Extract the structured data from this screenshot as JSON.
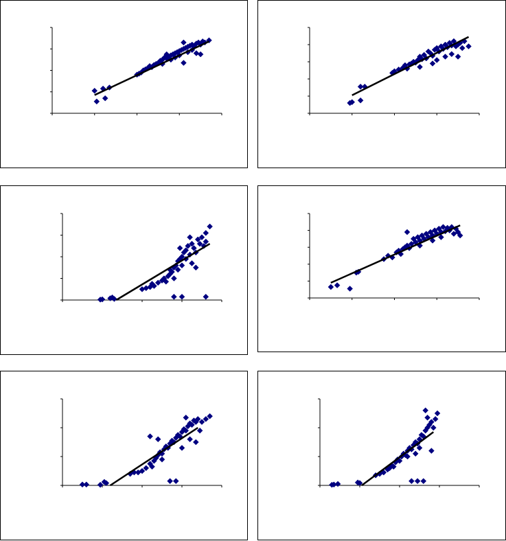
{
  "chart_data": [
    {
      "type": "scatter",
      "marker_color": "#000080",
      "trend_color": "#000000",
      "xlim": [
        0,
        4
      ],
      "ylim": [
        0,
        4
      ],
      "xticks": [
        0,
        1,
        2,
        3,
        4
      ],
      "yticks": [
        0,
        1,
        2,
        3,
        4
      ],
      "grid": false,
      "points": [
        [
          1.0,
          1.05
        ],
        [
          1.05,
          0.55
        ],
        [
          1.25,
          0.7
        ],
        [
          1.2,
          1.15
        ],
        [
          1.35,
          1.2
        ],
        [
          2.0,
          1.8
        ],
        [
          2.05,
          1.85
        ],
        [
          2.1,
          1.9
        ],
        [
          2.15,
          2.0
        ],
        [
          2.2,
          2.05
        ],
        [
          2.25,
          2.1
        ],
        [
          2.3,
          2.2
        ],
        [
          2.35,
          2.15
        ],
        [
          2.4,
          2.25
        ],
        [
          2.45,
          2.3
        ],
        [
          2.5,
          2.35
        ],
        [
          2.55,
          2.45
        ],
        [
          2.6,
          2.5
        ],
        [
          2.6,
          2.3
        ],
        [
          2.65,
          2.6
        ],
        [
          2.7,
          2.55
        ],
        [
          2.75,
          2.65
        ],
        [
          2.8,
          2.7
        ],
        [
          2.8,
          2.5
        ],
        [
          2.85,
          2.75
        ],
        [
          2.9,
          2.8
        ],
        [
          2.95,
          2.85
        ],
        [
          3.0,
          2.9
        ],
        [
          3.0,
          2.7
        ],
        [
          3.05,
          2.95
        ],
        [
          3.1,
          3.0
        ],
        [
          3.1,
          3.3
        ],
        [
          3.15,
          3.05
        ],
        [
          3.2,
          3.1
        ],
        [
          3.2,
          2.85
        ],
        [
          3.25,
          3.15
        ],
        [
          3.3,
          3.2
        ],
        [
          3.35,
          3.1
        ],
        [
          3.4,
          3.25
        ],
        [
          3.45,
          3.3
        ],
        [
          3.5,
          3.2
        ],
        [
          3.55,
          3.35
        ],
        [
          3.6,
          3.3
        ],
        [
          3.7,
          3.4
        ],
        [
          3.5,
          2.75
        ],
        [
          3.1,
          2.35
        ],
        [
          2.9,
          2.6
        ],
        [
          3.3,
          2.95
        ],
        [
          3.4,
          2.8
        ],
        [
          2.7,
          2.75
        ]
      ],
      "trend": [
        [
          1.0,
          0.85
        ],
        [
          3.7,
          3.35
        ]
      ]
    },
    {
      "type": "scatter",
      "marker_color": "#000080",
      "trend_color": "#000000",
      "xlim": [
        0,
        4
      ],
      "ylim": [
        0,
        5
      ],
      "xticks": [
        0,
        1,
        2,
        3,
        4
      ],
      "yticks": [
        0,
        1,
        2,
        3,
        4,
        5
      ],
      "grid": false,
      "points": [
        [
          0.95,
          0.6
        ],
        [
          1.0,
          0.65
        ],
        [
          1.2,
          0.75
        ],
        [
          1.2,
          1.55
        ],
        [
          1.3,
          1.55
        ],
        [
          1.95,
          2.35
        ],
        [
          2.0,
          2.45
        ],
        [
          2.1,
          2.55
        ],
        [
          2.2,
          2.65
        ],
        [
          2.25,
          2.8
        ],
        [
          2.3,
          2.6
        ],
        [
          2.35,
          2.85
        ],
        [
          2.4,
          2.9
        ],
        [
          2.45,
          3.0
        ],
        [
          2.5,
          2.95
        ],
        [
          2.55,
          3.1
        ],
        [
          2.6,
          3.3
        ],
        [
          2.65,
          3.15
        ],
        [
          2.7,
          3.4
        ],
        [
          2.75,
          3.2
        ],
        [
          2.8,
          3.6
        ],
        [
          2.85,
          3.5
        ],
        [
          2.9,
          3.35
        ],
        [
          2.95,
          3.7
        ],
        [
          3.0,
          3.8
        ],
        [
          3.05,
          3.6
        ],
        [
          3.1,
          3.9
        ],
        [
          3.15,
          3.75
        ],
        [
          3.2,
          4.0
        ],
        [
          3.25,
          3.85
        ],
        [
          3.3,
          4.1
        ],
        [
          3.35,
          3.95
        ],
        [
          3.4,
          4.2
        ],
        [
          3.45,
          3.9
        ],
        [
          3.5,
          4.0
        ],
        [
          3.55,
          4.1
        ],
        [
          3.6,
          3.8
        ],
        [
          3.65,
          4.2
        ],
        [
          3.5,
          3.3
        ],
        [
          3.75,
          3.9
        ],
        [
          2.9,
          2.9
        ],
        [
          3.0,
          3.1
        ],
        [
          3.2,
          3.3
        ],
        [
          2.6,
          2.7
        ],
        [
          3.35,
          3.45
        ]
      ],
      "trend": [
        [
          1.0,
          1.05
        ],
        [
          3.75,
          4.45
        ]
      ]
    },
    {
      "type": "scatter",
      "marker_color": "#000080",
      "trend_color": "#000000",
      "xlim": [
        0,
        4
      ],
      "ylim": [
        0,
        4
      ],
      "xticks": [
        0,
        1,
        2,
        3,
        4
      ],
      "yticks": [
        0,
        1,
        2,
        3,
        4
      ],
      "grid": false,
      "points": [
        [
          0.95,
          0.02
        ],
        [
          1.0,
          0.03
        ],
        [
          1.2,
          0.08
        ],
        [
          1.3,
          0.05
        ],
        [
          1.25,
          0.12
        ],
        [
          2.0,
          0.5
        ],
        [
          2.1,
          0.55
        ],
        [
          2.2,
          0.6
        ],
        [
          2.25,
          0.75
        ],
        [
          2.3,
          0.65
        ],
        [
          2.4,
          0.8
        ],
        [
          2.5,
          0.9
        ],
        [
          2.55,
          1.0
        ],
        [
          2.6,
          0.85
        ],
        [
          2.65,
          1.1
        ],
        [
          2.7,
          1.2
        ],
        [
          2.75,
          1.3
        ],
        [
          2.8,
          1.0
        ],
        [
          2.8,
          1.5
        ],
        [
          2.85,
          1.6
        ],
        [
          2.9,
          1.4
        ],
        [
          2.9,
          1.8
        ],
        [
          2.95,
          1.9
        ],
        [
          3.0,
          2.0
        ],
        [
          3.0,
          1.6
        ],
        [
          3.05,
          2.2
        ],
        [
          3.1,
          2.3
        ],
        [
          3.1,
          1.9
        ],
        [
          3.15,
          2.5
        ],
        [
          3.2,
          2.1
        ],
        [
          3.25,
          2.6
        ],
        [
          3.3,
          2.4
        ],
        [
          3.35,
          2.2
        ],
        [
          3.4,
          2.8
        ],
        [
          3.45,
          2.6
        ],
        [
          3.5,
          2.9
        ],
        [
          3.55,
          2.5
        ],
        [
          3.6,
          3.1
        ],
        [
          3.7,
          3.4
        ],
        [
          3.6,
          2.7
        ],
        [
          2.8,
          0.15
        ],
        [
          3.0,
          0.15
        ],
        [
          3.6,
          0.15
        ],
        [
          3.35,
          1.5
        ],
        [
          2.7,
          1.4
        ],
        [
          2.95,
          2.4
        ],
        [
          3.2,
          2.9
        ],
        [
          3.25,
          1.7
        ]
      ],
      "trend": [
        [
          1.35,
          0.0
        ],
        [
          3.7,
          2.6
        ]
      ]
    },
    {
      "type": "scatter",
      "marker_color": "#000080",
      "trend_color": "#000000",
      "xlim": [
        0,
        4
      ],
      "ylim": [
        0,
        5
      ],
      "xticks": [
        0,
        1,
        2,
        3,
        4
      ],
      "yticks": [
        0,
        1,
        2,
        3,
        4,
        5
      ],
      "grid": false,
      "points": [
        [
          0.5,
          0.65
        ],
        [
          0.65,
          0.75
        ],
        [
          0.95,
          0.55
        ],
        [
          1.1,
          1.5
        ],
        [
          1.15,
          1.55
        ],
        [
          1.75,
          2.3
        ],
        [
          1.85,
          2.5
        ],
        [
          1.95,
          2.4
        ],
        [
          2.05,
          2.7
        ],
        [
          2.1,
          2.8
        ],
        [
          2.15,
          2.6
        ],
        [
          2.2,
          2.9
        ],
        [
          2.25,
          3.0
        ],
        [
          2.3,
          3.1
        ],
        [
          2.35,
          2.95
        ],
        [
          2.4,
          3.2
        ],
        [
          2.45,
          3.5
        ],
        [
          2.5,
          3.3
        ],
        [
          2.55,
          3.6
        ],
        [
          2.6,
          3.4
        ],
        [
          2.65,
          3.7
        ],
        [
          2.7,
          3.5
        ],
        [
          2.75,
          3.8
        ],
        [
          2.8,
          3.6
        ],
        [
          2.85,
          3.9
        ],
        [
          2.9,
          3.7
        ],
        [
          2.95,
          4.0
        ],
        [
          3.0,
          3.8
        ],
        [
          3.05,
          4.1
        ],
        [
          3.1,
          3.9
        ],
        [
          3.15,
          4.2
        ],
        [
          3.2,
          3.95
        ],
        [
          3.25,
          4.15
        ],
        [
          3.3,
          4.0
        ],
        [
          3.35,
          4.2
        ],
        [
          3.4,
          3.8
        ],
        [
          3.45,
          4.1
        ],
        [
          3.5,
          3.9
        ],
        [
          3.55,
          3.7
        ],
        [
          2.3,
          3.9
        ],
        [
          2.6,
          3.1
        ],
        [
          2.9,
          3.4
        ],
        [
          3.1,
          3.6
        ]
      ],
      "trend": [
        [
          0.5,
          0.9
        ],
        [
          3.55,
          4.3
        ]
      ]
    },
    {
      "type": "scatter",
      "marker_color": "#000080",
      "trend_color": "#000000",
      "xlim": [
        0,
        4
      ],
      "ylim": [
        0,
        3
      ],
      "xticks": [
        0,
        1,
        2,
        3,
        4
      ],
      "yticks": [
        0,
        1,
        2,
        3
      ],
      "grid": false,
      "points": [
        [
          0.5,
          0.03
        ],
        [
          0.6,
          0.03
        ],
        [
          0.95,
          0.02
        ],
        [
          1.05,
          0.12
        ],
        [
          1.1,
          0.08
        ],
        [
          1.7,
          0.4
        ],
        [
          1.8,
          0.45
        ],
        [
          1.9,
          0.45
        ],
        [
          2.0,
          0.5
        ],
        [
          2.1,
          0.6
        ],
        [
          2.2,
          0.75
        ],
        [
          2.25,
          0.65
        ],
        [
          2.3,
          0.85
        ],
        [
          2.35,
          0.95
        ],
        [
          2.4,
          1.05
        ],
        [
          2.45,
          1.15
        ],
        [
          2.5,
          1.1
        ],
        [
          2.55,
          1.25
        ],
        [
          2.6,
          1.35
        ],
        [
          2.65,
          1.3
        ],
        [
          2.7,
          1.45
        ],
        [
          2.75,
          1.55
        ],
        [
          2.8,
          1.5
        ],
        [
          2.85,
          1.65
        ],
        [
          2.9,
          1.75
        ],
        [
          2.95,
          1.7
        ],
        [
          3.0,
          1.85
        ],
        [
          3.05,
          1.95
        ],
        [
          3.1,
          1.9
        ],
        [
          3.15,
          2.05
        ],
        [
          3.2,
          2.15
        ],
        [
          3.25,
          2.1
        ],
        [
          3.3,
          2.25
        ],
        [
          3.35,
          2.2
        ],
        [
          3.4,
          2.3
        ],
        [
          3.45,
          1.9
        ],
        [
          3.5,
          2.2
        ],
        [
          3.6,
          2.3
        ],
        [
          3.7,
          2.4
        ],
        [
          2.2,
          1.7
        ],
        [
          2.7,
          0.15
        ],
        [
          2.85,
          0.15
        ],
        [
          2.5,
          0.9
        ],
        [
          3.2,
          1.6
        ],
        [
          3.35,
          1.5
        ],
        [
          3.0,
          1.3
        ],
        [
          2.4,
          1.6
        ],
        [
          3.1,
          2.35
        ]
      ],
      "trend": [
        [
          1.2,
          0.0
        ],
        [
          3.4,
          2.0
        ]
      ]
    },
    {
      "type": "scatter",
      "marker_color": "#000080",
      "trend_color": "#000000",
      "xlim": [
        0,
        4
      ],
      "ylim": [
        0,
        3
      ],
      "xticks": [
        0,
        1,
        2,
        3,
        4
      ],
      "yticks": [
        0,
        1,
        2,
        3
      ],
      "grid": false,
      "points": [
        [
          0.3,
          0.02
        ],
        [
          0.35,
          0.03
        ],
        [
          0.45,
          0.05
        ],
        [
          0.95,
          0.1
        ],
        [
          1.0,
          0.08
        ],
        [
          1.4,
          0.35
        ],
        [
          1.5,
          0.4
        ],
        [
          1.6,
          0.45
        ],
        [
          1.7,
          0.55
        ],
        [
          1.75,
          0.6
        ],
        [
          1.8,
          0.7
        ],
        [
          1.85,
          0.65
        ],
        [
          1.9,
          0.8
        ],
        [
          1.95,
          0.9
        ],
        [
          2.0,
          0.85
        ],
        [
          2.05,
          1.0
        ],
        [
          2.1,
          1.1
        ],
        [
          2.15,
          1.05
        ],
        [
          2.2,
          1.2
        ],
        [
          2.25,
          1.3
        ],
        [
          2.3,
          1.25
        ],
        [
          2.35,
          1.4
        ],
        [
          2.4,
          1.5
        ],
        [
          2.45,
          1.45
        ],
        [
          2.5,
          1.6
        ],
        [
          2.55,
          1.75
        ],
        [
          2.6,
          1.7
        ],
        [
          2.65,
          1.9
        ],
        [
          2.7,
          2.0
        ],
        [
          2.75,
          2.1
        ],
        [
          2.8,
          2.2
        ],
        [
          2.85,
          2.0
        ],
        [
          2.9,
          2.3
        ],
        [
          2.95,
          2.5
        ],
        [
          2.65,
          2.6
        ],
        [
          2.7,
          2.35
        ],
        [
          2.8,
          1.2
        ],
        [
          2.5,
          1.3
        ],
        [
          2.3,
          0.15
        ],
        [
          2.45,
          0.15
        ],
        [
          2.6,
          0.15
        ],
        [
          2.2,
          1.0
        ],
        [
          2.4,
          1.1
        ]
      ],
      "trend": [
        [
          1.05,
          0.0
        ],
        [
          2.85,
          1.85
        ]
      ]
    }
  ]
}
